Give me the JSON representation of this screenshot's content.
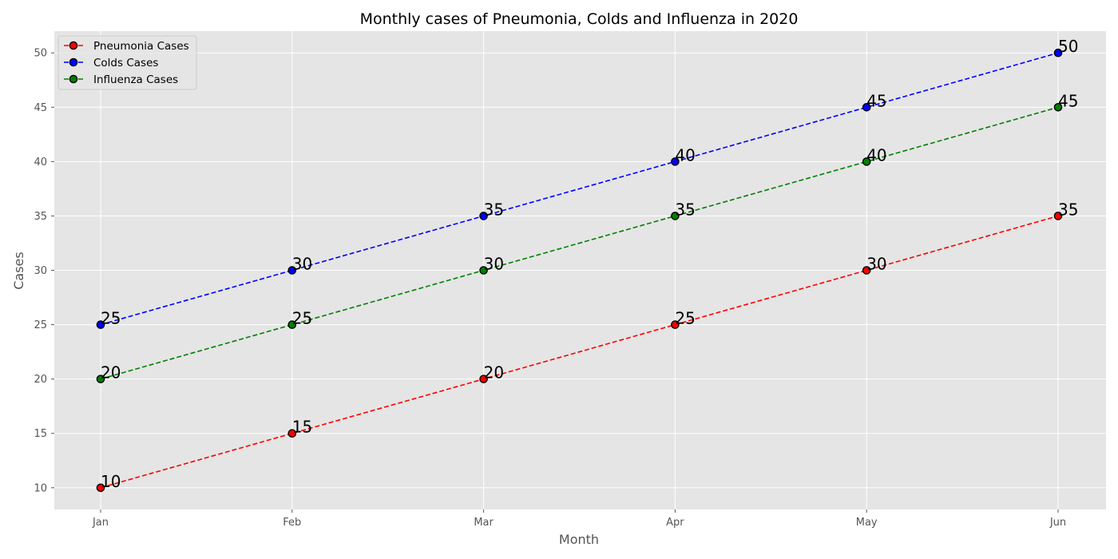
{
  "chart_data": {
    "type": "line",
    "title": "Monthly cases of Pneumonia, Colds and Influenza in 2020",
    "xlabel": "Month",
    "ylabel": "Cases",
    "categories": [
      "Jan",
      "Feb",
      "Mar",
      "Apr",
      "May",
      "Jun"
    ],
    "yticks": [
      10,
      15,
      20,
      25,
      30,
      35,
      40,
      45,
      50
    ],
    "ylim": [
      8,
      52
    ],
    "grid": true,
    "legend_position": "top-left",
    "series": [
      {
        "name": "Pneumonia Cases",
        "color": "#ff0000",
        "values": [
          10,
          15,
          20,
          25,
          30,
          35
        ]
      },
      {
        "name": "Colds Cases",
        "color": "#0000ff",
        "values": [
          25,
          30,
          35,
          40,
          45,
          50
        ]
      },
      {
        "name": "Influenza Cases",
        "color": "#008000",
        "values": [
          20,
          25,
          30,
          35,
          40,
          45
        ]
      }
    ],
    "line_style": "dashed",
    "marker_edge_color": "#000000",
    "plot_background": "#e5e5e5",
    "grid_color": "#ffffff"
  }
}
